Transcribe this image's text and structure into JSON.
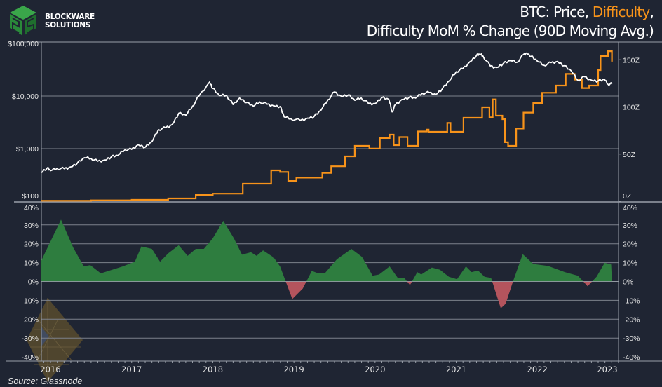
{
  "brand": {
    "line1": "BLOCKWARE",
    "line2": "SOLUTIONS"
  },
  "title": {
    "part1": "BTC: Price, ",
    "highlight": "Difficulty",
    "part2": ",",
    "line2": "Difficulty MoM % Change (90D Moving Avg.)"
  },
  "source": "Source: Glassnode",
  "colors": {
    "background": "#1f2533",
    "price": "#ffffff",
    "difficulty": "#f7931a",
    "positive": "#2e7d3f",
    "negative": "#b4545d",
    "grid": "#7d828c",
    "brand_green": "#3aa64a"
  },
  "chart_data": [
    {
      "type": "line",
      "x_axis": {
        "type": "date",
        "ticks": [
          "2016",
          "2017",
          "2018",
          "2019",
          "2020",
          "2021",
          "2022",
          "2023"
        ]
      },
      "left_axis": {
        "scale": "log",
        "range": [
          100,
          100000
        ],
        "ticks": [
          "$100",
          "$1,000",
          "$10,000",
          "$100,000"
        ],
        "tick_values": [
          100,
          1000,
          10000,
          100000
        ]
      },
      "right_axis": {
        "scale": "linear",
        "range": [
          0,
          165
        ],
        "ticks": [
          "0Z",
          "50Z",
          "100Z",
          "150Z"
        ],
        "tick_values": [
          0,
          50,
          100,
          150
        ]
      },
      "grid": true,
      "series": [
        {
          "name": "Price",
          "axis": "left",
          "color": "#ffffff",
          "points": [
            [
              2015.88,
              350
            ],
            [
              2015.96,
              430
            ],
            [
              2016.0,
              380
            ],
            [
              2016.08,
              420
            ],
            [
              2016.17,
              415
            ],
            [
              2016.25,
              450
            ],
            [
              2016.33,
              530
            ],
            [
              2016.42,
              670
            ],
            [
              2016.5,
              650
            ],
            [
              2016.58,
              575
            ],
            [
              2016.67,
              608
            ],
            [
              2016.75,
              700
            ],
            [
              2016.83,
              740
            ],
            [
              2016.92,
              960
            ],
            [
              2017.0,
              970
            ],
            [
              2017.08,
              1190
            ],
            [
              2017.17,
              1070
            ],
            [
              2017.25,
              1350
            ],
            [
              2017.33,
              2300
            ],
            [
              2017.42,
              2500
            ],
            [
              2017.5,
              2870
            ],
            [
              2017.58,
              4700
            ],
            [
              2017.67,
              4300
            ],
            [
              2017.75,
              6400
            ],
            [
              2017.83,
              10000
            ],
            [
              2017.96,
              18500
            ],
            [
              2018.0,
              14000
            ],
            [
              2018.08,
              10200
            ],
            [
              2018.17,
              10300
            ],
            [
              2018.25,
              6900
            ],
            [
              2018.33,
              9200
            ],
            [
              2018.42,
              7500
            ],
            [
              2018.5,
              6400
            ],
            [
              2018.58,
              7700
            ],
            [
              2018.67,
              7000
            ],
            [
              2018.75,
              6600
            ],
            [
              2018.83,
              6300
            ],
            [
              2018.88,
              4000
            ],
            [
              2018.96,
              3700
            ],
            [
              2019.08,
              3450
            ],
            [
              2019.17,
              3800
            ],
            [
              2019.25,
              4100
            ],
            [
              2019.33,
              5300
            ],
            [
              2019.42,
              8500
            ],
            [
              2019.5,
              12000
            ],
            [
              2019.58,
              10000
            ],
            [
              2019.67,
              10500
            ],
            [
              2019.75,
              8300
            ],
            [
              2019.83,
              9200
            ],
            [
              2019.92,
              7200
            ],
            [
              2020.0,
              7200
            ],
            [
              2020.08,
              9300
            ],
            [
              2020.17,
              8600
            ],
            [
              2020.21,
              5000
            ],
            [
              2020.25,
              6800
            ],
            [
              2020.33,
              8600
            ],
            [
              2020.42,
              9450
            ],
            [
              2020.5,
              9150
            ],
            [
              2020.58,
              11300
            ],
            [
              2020.67,
              11650
            ],
            [
              2020.75,
              10800
            ],
            [
              2020.83,
              13800
            ],
            [
              2020.92,
              19700
            ],
            [
              2021.0,
              29000
            ],
            [
              2021.08,
              33100
            ],
            [
              2021.17,
              45100
            ],
            [
              2021.25,
              58800
            ],
            [
              2021.29,
              62000
            ],
            [
              2021.33,
              57700
            ],
            [
              2021.42,
              37300
            ],
            [
              2021.5,
              35000
            ],
            [
              2021.58,
              41500
            ],
            [
              2021.67,
              47100
            ],
            [
              2021.75,
              43800
            ],
            [
              2021.83,
              61300
            ],
            [
              2021.87,
              66000
            ],
            [
              2021.92,
              57000
            ],
            [
              2022.0,
              46300
            ],
            [
              2022.08,
              38500
            ],
            [
              2022.17,
              43200
            ],
            [
              2022.25,
              45500
            ],
            [
              2022.33,
              37700
            ],
            [
              2022.42,
              29800
            ],
            [
              2022.5,
              19800
            ],
            [
              2022.58,
              23300
            ],
            [
              2022.67,
              20000
            ],
            [
              2022.75,
              19400
            ],
            [
              2022.83,
              20500
            ],
            [
              2022.87,
              16800
            ],
            [
              2022.92,
              17000
            ]
          ]
        },
        {
          "name": "Difficulty",
          "axis": "right",
          "color": "#f7931a",
          "step": true,
          "points": [
            [
              2015.88,
              0.5
            ],
            [
              2016.5,
              1
            ],
            [
              2017.0,
              1.5
            ],
            [
              2017.45,
              3
            ],
            [
              2017.79,
              6.7
            ],
            [
              2018.0,
              8
            ],
            [
              2018.37,
              18.6
            ],
            [
              2018.72,
              32.7
            ],
            [
              2018.83,
              31
            ],
            [
              2018.93,
              21.5
            ],
            [
              2019.03,
              25
            ],
            [
              2019.35,
              30
            ],
            [
              2019.46,
              37
            ],
            [
              2019.63,
              47.6
            ],
            [
              2019.75,
              58.7
            ],
            [
              2019.93,
              55.8
            ],
            [
              2020.06,
              67
            ],
            [
              2020.18,
              70.6
            ],
            [
              2020.23,
              59.5
            ],
            [
              2020.3,
              68
            ],
            [
              2020.4,
              58.7
            ],
            [
              2020.53,
              74
            ],
            [
              2020.64,
              76
            ],
            [
              2020.66,
              73.6
            ],
            [
              2020.89,
              83
            ],
            [
              2020.93,
              73.6
            ],
            [
              2021.09,
              88.5
            ],
            [
              2021.32,
              99.6
            ],
            [
              2021.41,
              89
            ],
            [
              2021.45,
              108
            ],
            [
              2021.49,
              90.7
            ],
            [
              2021.57,
              87
            ],
            [
              2021.6,
              62.5
            ],
            [
              2021.64,
              58.7
            ],
            [
              2021.74,
              77
            ],
            [
              2021.83,
              94
            ],
            [
              2021.95,
              104
            ],
            [
              2022.06,
              115
            ],
            [
              2022.23,
              122.7
            ],
            [
              2022.35,
              135
            ],
            [
              2022.46,
              129
            ],
            [
              2022.55,
              120
            ],
            [
              2022.64,
              122.7
            ],
            [
              2022.75,
              139
            ],
            [
              2022.78,
              154
            ],
            [
              2022.87,
              159
            ],
            [
              2022.92,
              148
            ]
          ]
        }
      ]
    },
    {
      "type": "area",
      "y_axis": {
        "range": [
          -40,
          40
        ],
        "ticks": [
          "40%",
          "30%",
          "20%",
          "10%",
          "0%",
          "-10%",
          "-20%",
          "-30%",
          "-40%"
        ],
        "tick_values": [
          40,
          30,
          20,
          10,
          0,
          -10,
          -20,
          -30,
          -40
        ]
      },
      "grid": true,
      "series": [
        {
          "name": "Difficulty MoM % Change (90D Moving Avg.)",
          "points": [
            [
              2015.88,
              10.5
            ],
            [
              2016.13,
              32.8
            ],
            [
              2016.28,
              18
            ],
            [
              2016.41,
              8
            ],
            [
              2016.49,
              8.7
            ],
            [
              2016.62,
              4.3
            ],
            [
              2016.89,
              8
            ],
            [
              2017.04,
              10.5
            ],
            [
              2017.12,
              18.6
            ],
            [
              2017.25,
              17.3
            ],
            [
              2017.35,
              10.5
            ],
            [
              2017.45,
              14.9
            ],
            [
              2017.58,
              19.2
            ],
            [
              2017.69,
              13.6
            ],
            [
              2017.79,
              17.3
            ],
            [
              2017.89,
              17.3
            ],
            [
              2018.0,
              22.9
            ],
            [
              2018.13,
              32.2
            ],
            [
              2018.26,
              22.9
            ],
            [
              2018.36,
              14.2
            ],
            [
              2018.47,
              15.5
            ],
            [
              2018.54,
              13.6
            ],
            [
              2018.62,
              16.5
            ],
            [
              2018.75,
              12.8
            ],
            [
              2018.83,
              8
            ],
            [
              2018.98,
              -9.3
            ],
            [
              2019.11,
              -3.7
            ],
            [
              2019.22,
              5.6
            ],
            [
              2019.3,
              4.3
            ],
            [
              2019.38,
              4.3
            ],
            [
              2019.53,
              11.8
            ],
            [
              2019.71,
              17.3
            ],
            [
              2019.84,
              13
            ],
            [
              2019.97,
              3.1
            ],
            [
              2020.05,
              3.7
            ],
            [
              2020.18,
              8
            ],
            [
              2020.28,
              1.9
            ],
            [
              2020.36,
              1.9
            ],
            [
              2020.43,
              -1.9
            ],
            [
              2020.52,
              5
            ],
            [
              2020.57,
              3.7
            ],
            [
              2020.7,
              7.4
            ],
            [
              2020.8,
              6.2
            ],
            [
              2020.91,
              2.5
            ],
            [
              2021.01,
              1.2
            ],
            [
              2021.12,
              8
            ],
            [
              2021.19,
              5
            ],
            [
              2021.27,
              5.8
            ],
            [
              2021.35,
              2.5
            ],
            [
              2021.43,
              1.9
            ],
            [
              2021.55,
              -14.2
            ],
            [
              2021.61,
              -11.8
            ],
            [
              2021.7,
              0
            ],
            [
              2021.82,
              14.5
            ],
            [
              2021.95,
              9.3
            ],
            [
              2022.13,
              8.3
            ],
            [
              2022.34,
              5
            ],
            [
              2022.5,
              3.1
            ],
            [
              2022.62,
              -2.5
            ],
            [
              2022.73,
              2.5
            ],
            [
              2022.83,
              9.9
            ],
            [
              2022.91,
              9
            ],
            [
              2022.92,
              0
            ]
          ]
        }
      ]
    }
  ]
}
